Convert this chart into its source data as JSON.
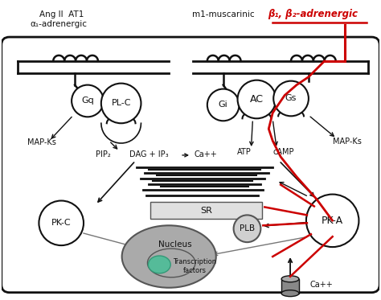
{
  "bg_color": "#ffffff",
  "cell_border_color": "#111111",
  "red_color": "#cc0000",
  "gray_color": "#777777",
  "dark_gray": "#555555",
  "light_gray": "#cccccc",
  "green_color": "#55bb99",
  "nucleus_color": "#999999",
  "title_labels": {
    "ang": "Ang II  AT1",
    "alpha": "α₁-adrenergic",
    "m1": "m1-muscarinic",
    "beta": "β₁, β₂-adrenergic"
  },
  "protein_labels": {
    "Gq": "Gq",
    "PLC": "PL-C",
    "Gi": "Gi",
    "AC": "AC",
    "Gs": "Gs",
    "PKC": "PK-C",
    "PKA": "PK-A",
    "PLB": "PLB",
    "SR": "SR",
    "Nucleus": "Nucleus",
    "TF": "Transcription\nfactors"
  },
  "pathway_labels": {
    "MAP_Ks_left": "MAP-Ks",
    "PIP2": "PIP₂",
    "DAG_IP3": "DAG + IP₃",
    "arrow_label": "→",
    "Ca_right": "Ca++",
    "ATP": "ATP",
    "cAMP": "cAMP",
    "MAP_Ks_right": "MAP-Ks",
    "Ca_bottom": "Ca++"
  }
}
